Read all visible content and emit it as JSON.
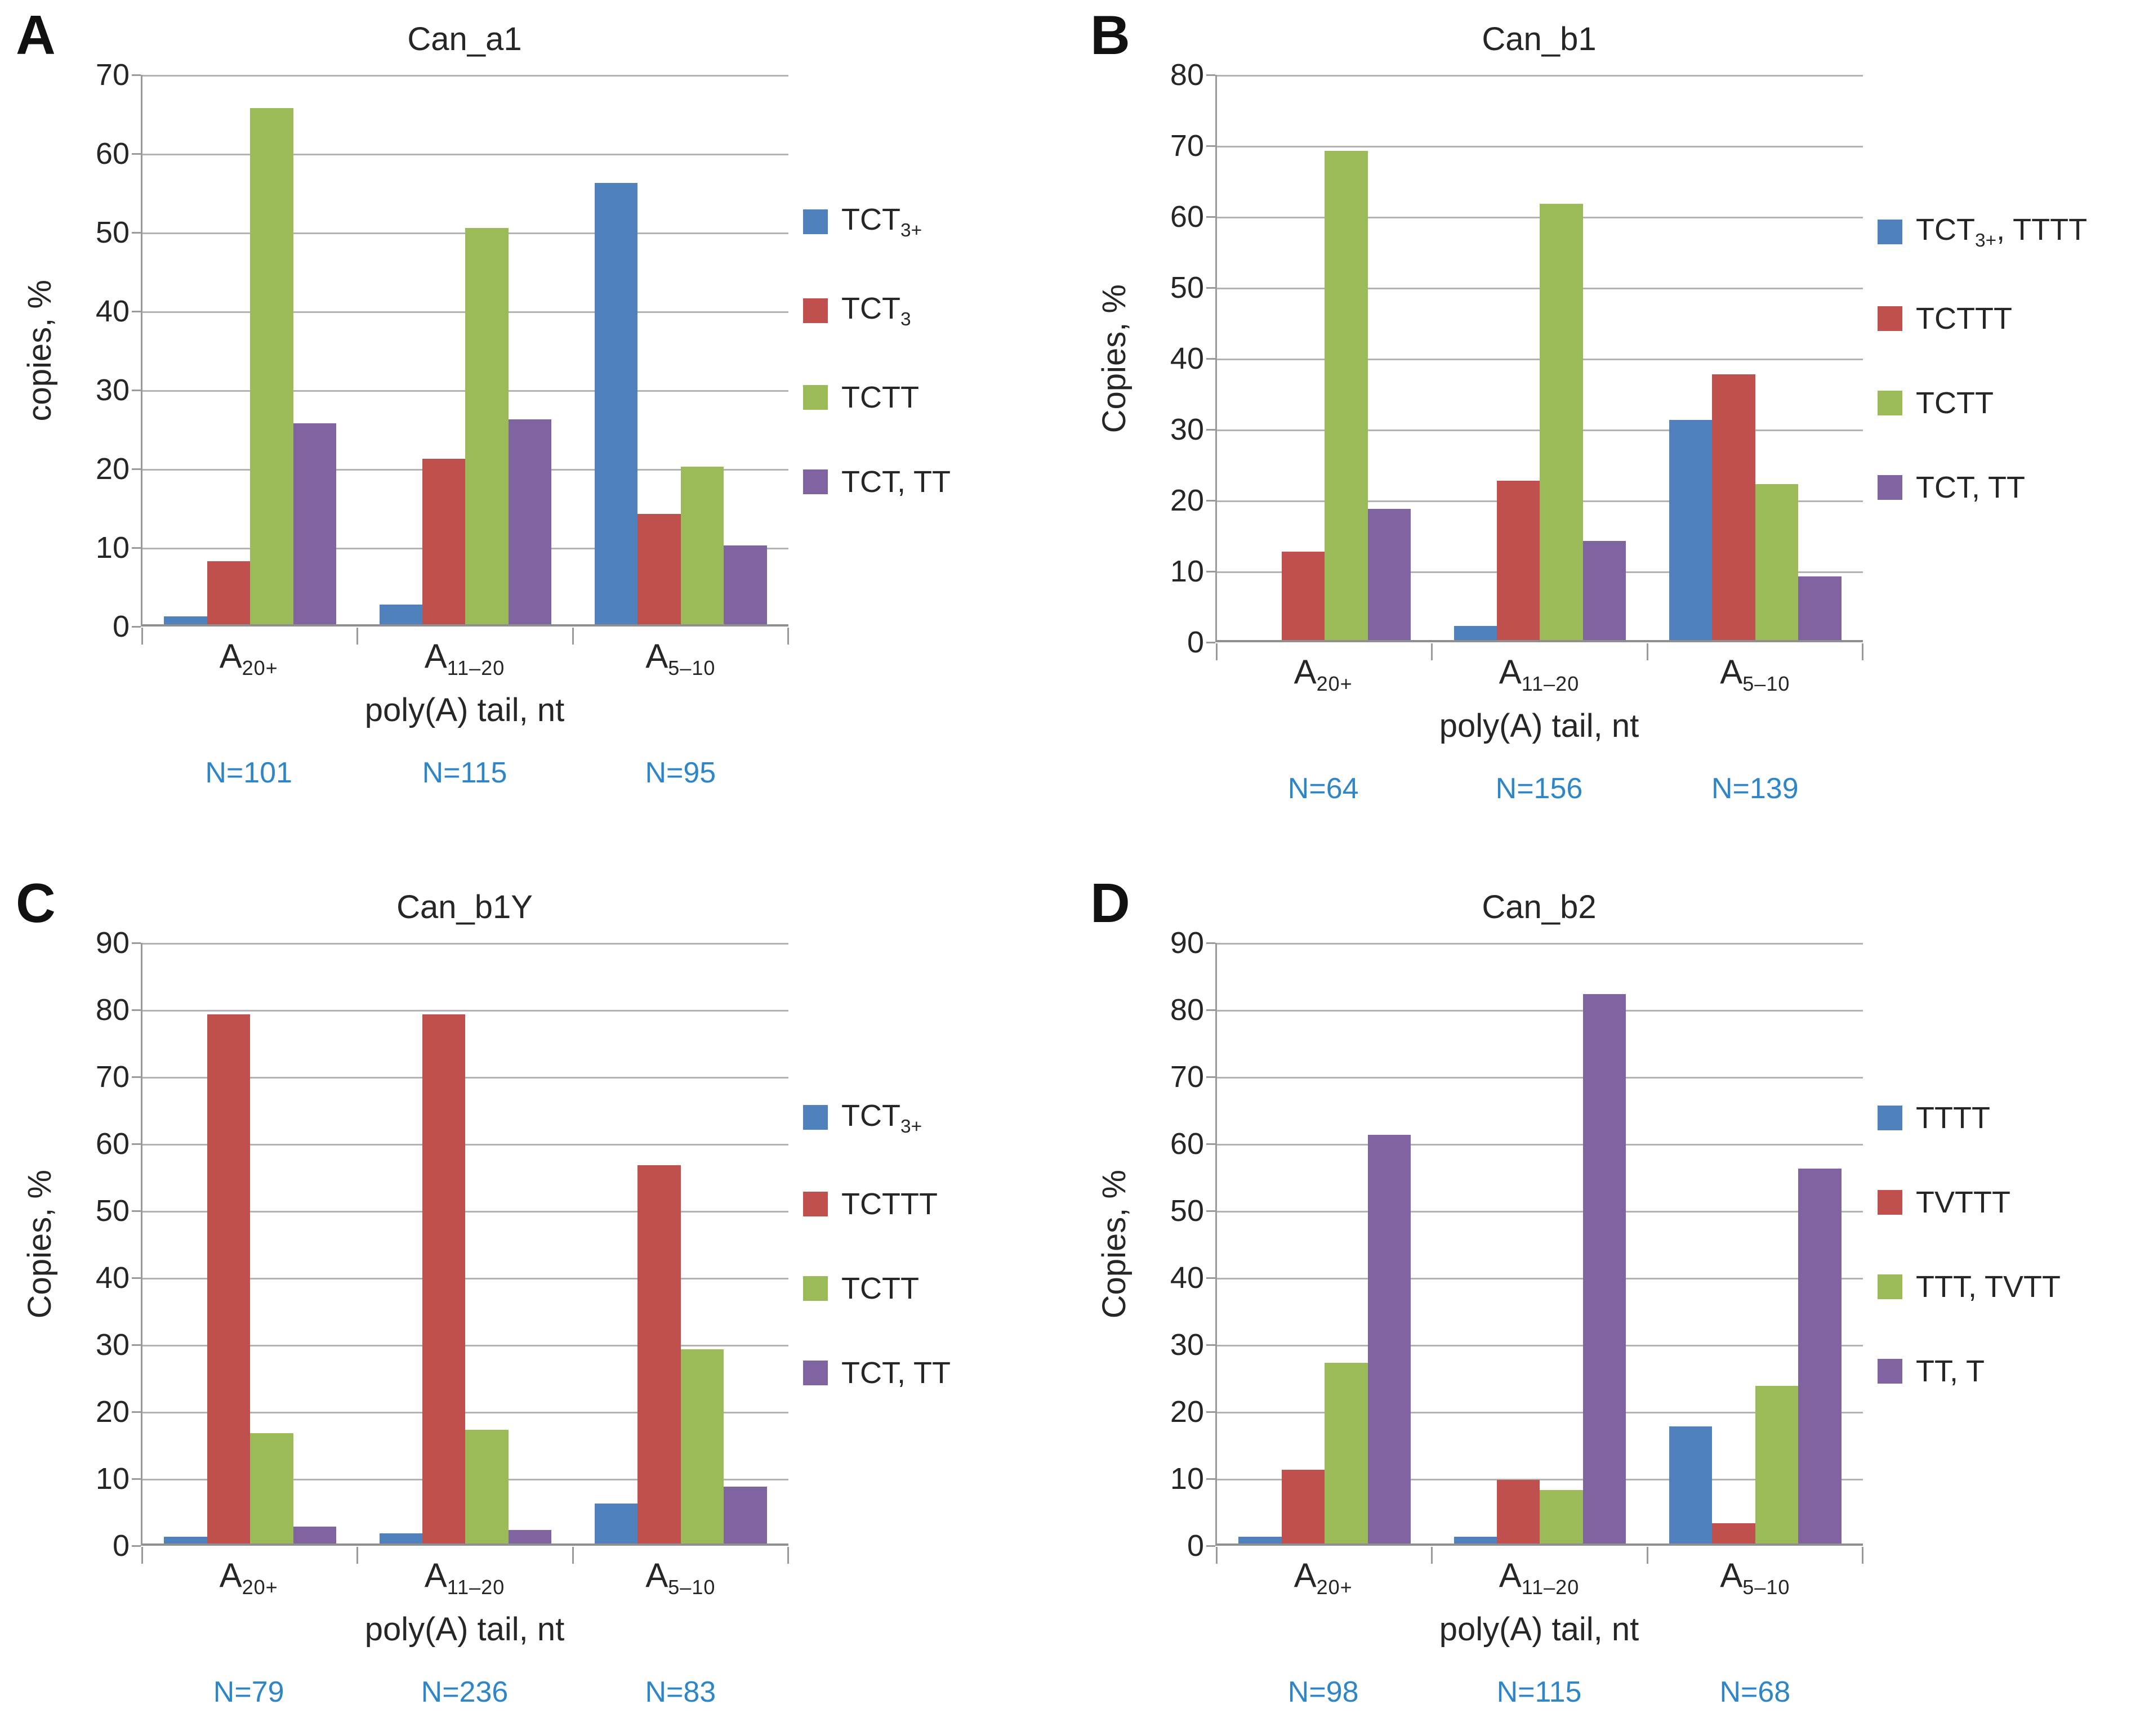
{
  "theme": {
    "background": "#FFFFFF",
    "text_color": "#262626",
    "grid_color": "#B3B3B3",
    "axis_color": "#9A9A9A",
    "n_label_color": "#2E86C8",
    "series_palette": [
      "#4F81BD",
      "#C0504D",
      "#9BBB59",
      "#8064A2"
    ]
  },
  "chart_data": [
    {
      "type": "bar",
      "panel_letter": "A",
      "title": "Can_a1",
      "ylabel": "copies, %",
      "xlabel": "poly(A) tail, nt",
      "ylim": [
        0,
        70
      ],
      "ytick_step": 10,
      "grid": true,
      "legend_position": "right",
      "categories": [
        "A20+",
        "A11–20",
        "A5–10"
      ],
      "categories_rich": [
        {
          "base": "A",
          "sub": "20+"
        },
        {
          "base": "A",
          "sub": "11–20"
        },
        {
          "base": "A",
          "sub": "5–10"
        }
      ],
      "n_labels": [
        "N=101",
        "N=115",
        "N=95"
      ],
      "series": [
        {
          "name": "TCT3+",
          "name_rich": [
            {
              "t": "TCT"
            },
            {
              "t": "3+",
              "sub": true
            }
          ],
          "color": "#4F81BD",
          "values": [
            1,
            2.5,
            56
          ]
        },
        {
          "name": "TCT3",
          "name_rich": [
            {
              "t": "TCT"
            },
            {
              "t": "3",
              "sub": true
            }
          ],
          "color": "#C0504D",
          "values": [
            8,
            21,
            14
          ]
        },
        {
          "name": "TCTT",
          "name_rich": [
            {
              "t": "TCTT"
            }
          ],
          "color": "#9BBB59",
          "values": [
            65.5,
            50.3,
            20
          ]
        },
        {
          "name": "TCT, TT",
          "name_rich": [
            {
              "t": "TCT, TT"
            }
          ],
          "color": "#8064A2",
          "values": [
            25.5,
            26,
            10
          ]
        }
      ]
    },
    {
      "type": "bar",
      "panel_letter": "B",
      "title": "Can_b1",
      "ylabel": "Copies, %",
      "xlabel": "poly(A) tail, nt",
      "ylim": [
        0,
        80
      ],
      "ytick_step": 10,
      "grid": true,
      "legend_position": "right",
      "categories": [
        "A20+",
        "A11–20",
        "A5–10"
      ],
      "categories_rich": [
        {
          "base": "A",
          "sub": "20+"
        },
        {
          "base": "A",
          "sub": "11–20"
        },
        {
          "base": "A",
          "sub": "5–10"
        }
      ],
      "n_labels": [
        "N=64",
        "N=156",
        "N=139"
      ],
      "series": [
        {
          "name": "TCT3+, TTTT",
          "name_rich": [
            {
              "t": "TCT"
            },
            {
              "t": "3+",
              "sub": true
            },
            {
              "t": ", TTTT"
            }
          ],
          "color": "#4F81BD",
          "values": [
            0,
            2,
            31
          ]
        },
        {
          "name": "TCTTT",
          "name_rich": [
            {
              "t": "TCTTT"
            }
          ],
          "color": "#C0504D",
          "values": [
            12.5,
            22.5,
            37.5
          ]
        },
        {
          "name": "TCTT",
          "name_rich": [
            {
              "t": "TCTT"
            }
          ],
          "color": "#9BBB59",
          "values": [
            69,
            61.5,
            22
          ]
        },
        {
          "name": "TCT, TT",
          "name_rich": [
            {
              "t": "TCT, TT"
            }
          ],
          "color": "#8064A2",
          "values": [
            18.5,
            14,
            9
          ]
        }
      ]
    },
    {
      "type": "bar",
      "panel_letter": "C",
      "title": "Can_b1Y",
      "ylabel": "Copies, %",
      "xlabel": "poly(A) tail, nt",
      "ylim": [
        0,
        90
      ],
      "ytick_step": 10,
      "grid": true,
      "legend_position": "right",
      "categories": [
        "A20+",
        "A11–20",
        "A5–10"
      ],
      "categories_rich": [
        {
          "base": "A",
          "sub": "20+"
        },
        {
          "base": "A",
          "sub": "11–20"
        },
        {
          "base": "A",
          "sub": "5–10"
        }
      ],
      "n_labels": [
        "N=79",
        "N=236",
        "N=83"
      ],
      "series": [
        {
          "name": "TCT3+",
          "name_rich": [
            {
              "t": "TCT"
            },
            {
              "t": "3+",
              "sub": true
            }
          ],
          "color": "#4F81BD",
          "values": [
            1,
            1.5,
            6
          ]
        },
        {
          "name": "TCTTT",
          "name_rich": [
            {
              "t": "TCTTT"
            }
          ],
          "color": "#C0504D",
          "values": [
            79,
            79,
            56.5
          ]
        },
        {
          "name": "TCTT",
          "name_rich": [
            {
              "t": "TCTT"
            }
          ],
          "color": "#9BBB59",
          "values": [
            16.5,
            17,
            29
          ]
        },
        {
          "name": "TCT, TT",
          "name_rich": [
            {
              "t": "TCT, TT"
            }
          ],
          "color": "#8064A2",
          "values": [
            2.5,
            2,
            8.5
          ]
        }
      ]
    },
    {
      "type": "bar",
      "panel_letter": "D",
      "title": "Can_b2",
      "ylabel": "Copies, %",
      "xlabel": "poly(A) tail, nt",
      "ylim": [
        0,
        90
      ],
      "ytick_step": 10,
      "grid": true,
      "legend_position": "right",
      "categories": [
        "A20+",
        "A11–20",
        "A5–10"
      ],
      "categories_rich": [
        {
          "base": "A",
          "sub": "20+"
        },
        {
          "base": "A",
          "sub": "11–20"
        },
        {
          "base": "A",
          "sub": "5–10"
        }
      ],
      "n_labels": [
        "N=98",
        "N=115",
        "N=68"
      ],
      "series": [
        {
          "name": "TTTT",
          "name_rich": [
            {
              "t": "TTTT"
            }
          ],
          "color": "#4F81BD",
          "values": [
            1,
            1,
            17.5
          ]
        },
        {
          "name": "TVTTT",
          "name_rich": [
            {
              "t": "TVTTT"
            }
          ],
          "color": "#C0504D",
          "values": [
            11,
            9.5,
            3
          ]
        },
        {
          "name": "TTT, TVTT",
          "name_rich": [
            {
              "t": "TTT, TVTT"
            }
          ],
          "color": "#9BBB59",
          "values": [
            27,
            8,
            23.5
          ]
        },
        {
          "name": "TT, T",
          "name_rich": [
            {
              "t": "TT, T"
            }
          ],
          "color": "#8064A2",
          "values": [
            61,
            82,
            56
          ]
        }
      ]
    }
  ]
}
